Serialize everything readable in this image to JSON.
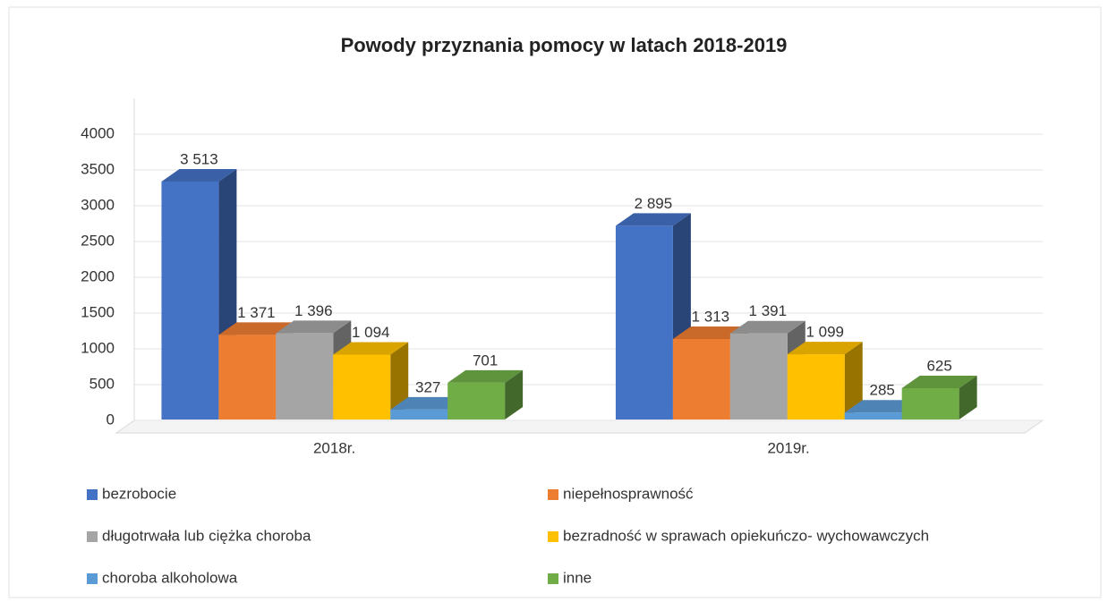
{
  "chart_data": {
    "type": "bar3d",
    "title": "Powody przyznania pomocy w latach 2018-2019",
    "categories": [
      "2018r.",
      "2019r."
    ],
    "series": [
      {
        "name": "bezrobocie",
        "color": "#4472c4",
        "values": [
          3513,
          2895
        ],
        "value_labels": [
          "3 513",
          "2 895"
        ]
      },
      {
        "name": "niepełnosprawność",
        "color": "#ed7d31",
        "values": [
          1371,
          1313
        ],
        "value_labels": [
          "1 371",
          "1 313"
        ]
      },
      {
        "name": "długotrwała lub ciężka choroba",
        "color": "#a5a5a5",
        "values": [
          1396,
          1391
        ],
        "value_labels": [
          "1 396",
          "1 391"
        ]
      },
      {
        "name": "bezradność w sprawach opiekuńczo- wychowawczych",
        "color": "#ffc000",
        "values": [
          1094,
          1099
        ],
        "value_labels": [
          "1 094",
          "1 099"
        ]
      },
      {
        "name": "choroba alkoholowa",
        "color": "#5b9bd5",
        "values": [
          327,
          285
        ],
        "value_labels": [
          "327",
          "285"
        ]
      },
      {
        "name": "inne",
        "color": "#70ad47",
        "values": [
          701,
          625
        ],
        "value_labels": [
          "701",
          "625"
        ]
      }
    ],
    "ylim": [
      0,
      4000
    ],
    "yticks": [
      0,
      500,
      1000,
      1500,
      2000,
      2500,
      3000,
      3500,
      4000
    ],
    "grid": true,
    "legend": "bottom"
  }
}
